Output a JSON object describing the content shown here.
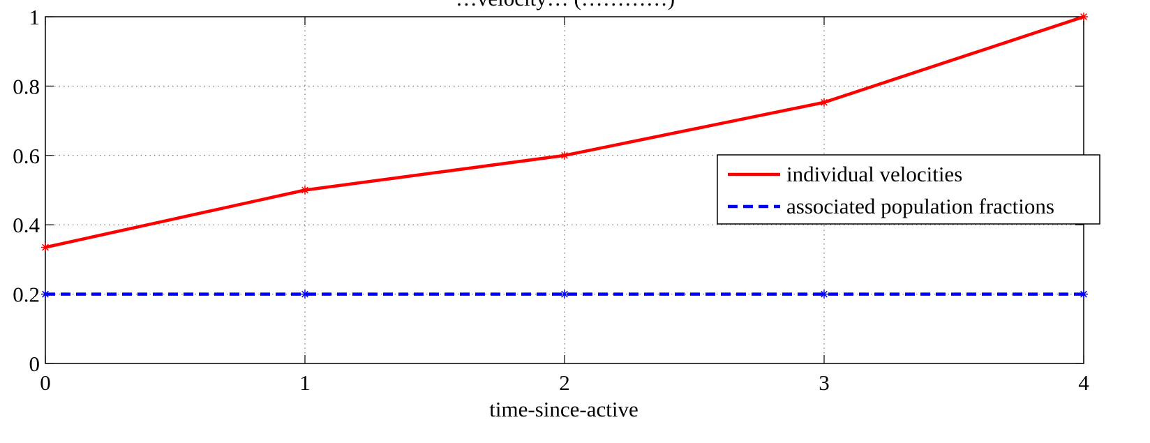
{
  "chart_data": {
    "type": "line",
    "title": "…velocity… (…………)",
    "xlabel": "time-since-active",
    "ylabel": "",
    "x": [
      0,
      1,
      2,
      3,
      4
    ],
    "xlim": [
      0,
      4
    ],
    "ylim": [
      0,
      1
    ],
    "x_ticks": [
      "0",
      "1",
      "2",
      "3",
      "4"
    ],
    "y_ticks": [
      "0",
      "0.2",
      "0.4",
      "0.6",
      "0.8",
      "1"
    ],
    "grid": true,
    "legend_position": "right",
    "series": [
      {
        "name": "individual velocities",
        "values": [
          0.335,
          0.5,
          0.6,
          0.753,
          1.0
        ],
        "color": "#ff0000",
        "line_style": "solid",
        "marker": "asterisk"
      },
      {
        "name": "associated population fractions",
        "values": [
          0.2,
          0.2,
          0.2,
          0.2,
          0.2
        ],
        "color": "#0000ff",
        "line_style": "dashed",
        "marker": "asterisk"
      }
    ]
  }
}
